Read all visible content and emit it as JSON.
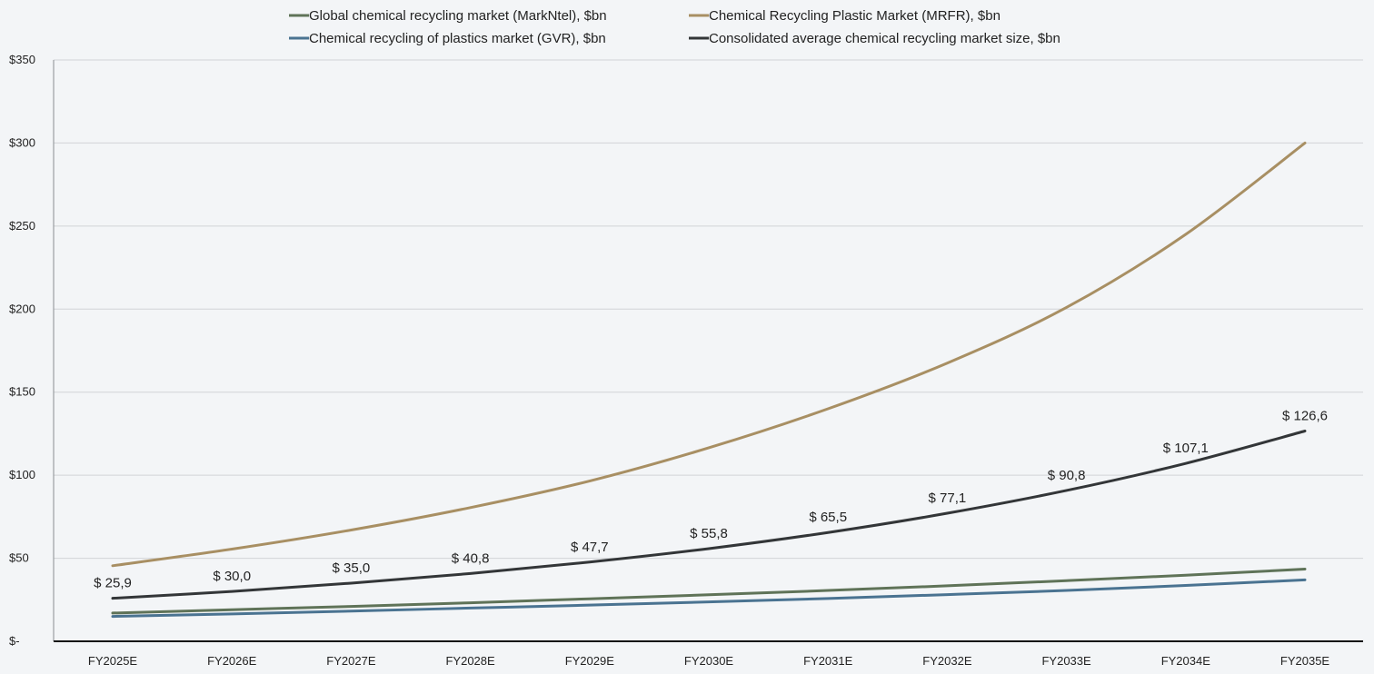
{
  "chart_data": {
    "type": "line",
    "title": "",
    "xlabel": "",
    "ylabel": "",
    "ylim": [
      0,
      350
    ],
    "y_ticks": [
      {
        "value": 0,
        "label": "$-"
      },
      {
        "value": 50,
        "label": "$50"
      },
      {
        "value": 100,
        "label": "$100"
      },
      {
        "value": 150,
        "label": "$150"
      },
      {
        "value": 200,
        "label": "$200"
      },
      {
        "value": 250,
        "label": "$250"
      },
      {
        "value": 300,
        "label": "$300"
      },
      {
        "value": 350,
        "label": "$350"
      }
    ],
    "grid": true,
    "legend_position": "top",
    "categories": [
      "FY2025E",
      "FY2026E",
      "FY2027E",
      "FY2028E",
      "FY2029E",
      "FY2030E",
      "FY2031E",
      "FY2032E",
      "FY2033E",
      "FY2034E",
      "FY2035E"
    ],
    "series": [
      {
        "key": "marknetl",
        "name": "Global chemical recycling market (MarkNtel), $bn",
        "color": "#5f7358",
        "values": [
          17.0,
          19.0,
          21.0,
          23.2,
          25.6,
          28.0,
          30.6,
          33.4,
          36.5,
          39.8,
          43.5
        ]
      },
      {
        "key": "mrfr",
        "name": "Chemical Recycling Plastic Market (MRFR), $bn",
        "color": "#a88f63",
        "values": [
          45.5,
          55.5,
          67.0,
          80.5,
          96.5,
          116.5,
          140.0,
          167.5,
          201.0,
          245.0,
          300.0
        ]
      },
      {
        "key": "gvr",
        "name": "Chemical recycling of plastics market (GVR), $bn",
        "color": "#4a7391",
        "values": [
          15.0,
          16.5,
          18.2,
          20.0,
          21.8,
          23.7,
          25.8,
          28.1,
          30.6,
          33.6,
          37.0
        ]
      },
      {
        "key": "avg",
        "name": "Consolidated average chemical recycling market size, $bn",
        "color": "#333638",
        "values": [
          25.9,
          30.0,
          35.0,
          40.8,
          47.7,
          55.8,
          65.5,
          77.1,
          90.8,
          107.1,
          126.6
        ],
        "data_labels": [
          "$ 25,9",
          "$ 30,0",
          "$ 35,0",
          "$ 40,8",
          "$ 47,7",
          "$ 55,8",
          "$ 65,5",
          "$ 77,1",
          "$ 90,8",
          "$ 107,1",
          "$ 126,6"
        ]
      }
    ],
    "legend_order": [
      "marknetl",
      "mrfr",
      "gvr",
      "avg"
    ]
  }
}
